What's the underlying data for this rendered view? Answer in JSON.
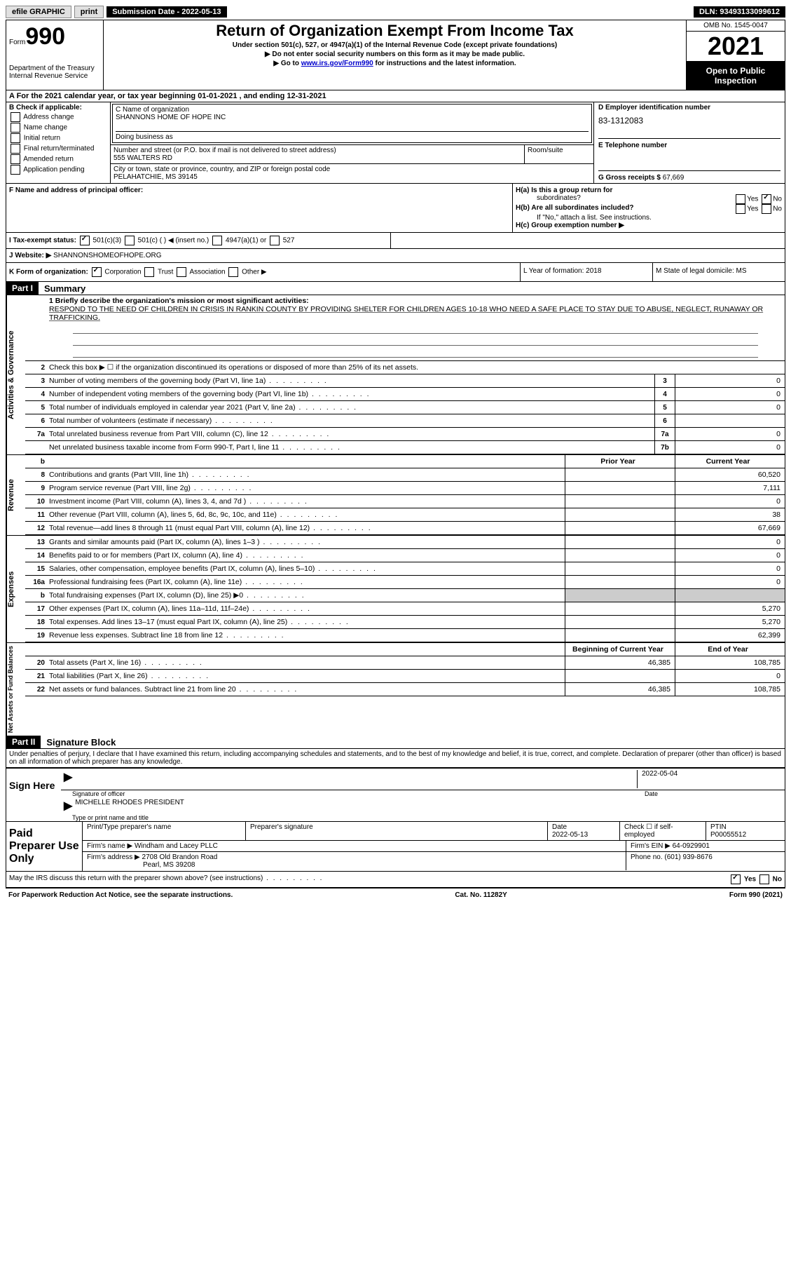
{
  "topbar": {
    "efile_label": "efile GRAPHIC",
    "print_btn": "print",
    "submission_label": "Submission Date - 2022-05-13",
    "dln_label": "DLN: 93493133099612"
  },
  "header": {
    "form_label": "Form",
    "form_number": "990",
    "dept": "Department of the Treasury",
    "irs": "Internal Revenue Service",
    "title": "Return of Organization Exempt From Income Tax",
    "sub1": "Under section 501(c), 527, or 4947(a)(1) of the Internal Revenue Code (except private foundations)",
    "sub2": "▶ Do not enter social security numbers on this form as it may be made public.",
    "sub3_prefix": "▶ Go to ",
    "sub3_link": "www.irs.gov/Form990",
    "sub3_suffix": " for instructions and the latest information.",
    "omb": "OMB No. 1545-0047",
    "year": "2021",
    "open_public": "Open to Public Inspection"
  },
  "rowA": {
    "text": "A  For the 2021 calendar year, or tax year beginning 01-01-2021    , and ending 12-31-2021"
  },
  "colB": {
    "header": "B Check if applicable:",
    "options": [
      "Address change",
      "Name change",
      "Initial return",
      "Final return/terminated",
      "Amended return",
      "Application pending"
    ]
  },
  "colC": {
    "name_label": "C Name of organization",
    "name": "SHANNONS HOME OF HOPE INC",
    "dba_label": "Doing business as",
    "addr_label": "Number and street (or P.O. box if mail is not delivered to street address)",
    "room_label": "Room/suite",
    "addr": "555 WALTERS RD",
    "city_label": "City or town, state or province, country, and ZIP or foreign postal code",
    "city": "PELAHATCHIE, MS  39145"
  },
  "colD": {
    "ein_label": "D Employer identification number",
    "ein": "83-1312083",
    "phone_label": "E Telephone number",
    "receipts_label": "G Gross receipts $",
    "receipts": "67,669"
  },
  "rowF": {
    "label": "F Name and address of principal officer:"
  },
  "rowH": {
    "ha_label": "H(a)  Is this a group return for",
    "ha_sub": "subordinates?",
    "hb_label": "H(b)  Are all subordinates included?",
    "hb_note": "If \"No,\" attach a list. See instructions.",
    "hc_label": "H(c)  Group exemption number ▶",
    "yes": "Yes",
    "no": "No"
  },
  "rowI": {
    "label": "I   Tax-exempt status:",
    "opt1": "501(c)(3)",
    "opt2": "501(c) (  ) ◀ (insert no.)",
    "opt3": "4947(a)(1) or",
    "opt4": "527"
  },
  "rowJ": {
    "label": "J   Website: ▶",
    "value": "SHANNONSHOMEOFHOPE.ORG"
  },
  "rowK": {
    "label": "K Form of organization:",
    "corp": "Corporation",
    "trust": "Trust",
    "assoc": "Association",
    "other": "Other ▶",
    "year_label": "L Year of formation: 2018",
    "state_label": "M State of legal domicile: MS"
  },
  "part1": {
    "header": "Part I",
    "title": "Summary",
    "side_gov": "Activities & Governance",
    "side_rev": "Revenue",
    "side_exp": "Expenses",
    "side_net": "Net Assets or Fund Balances",
    "line1_label": "1  Briefly describe the organization's mission or most significant activities:",
    "line1_text": "RESPOND TO THE NEED OF CHILDREN IN CRISIS IN RANKIN COUNTY BY PROVIDING SHELTER FOR CHILDREN AGES 10-18 WHO NEED A SAFE PLACE TO STAY DUE TO ABUSE, NEGLECT, RUNAWAY OR TRAFFICKING.",
    "line2": "Check this box ▶ ☐  if the organization discontinued its operations or disposed of more than 25% of its net assets.",
    "lines_gov": [
      {
        "n": "3",
        "t": "Number of voting members of the governing body (Part VI, line 1a)",
        "b": "3",
        "v": "0"
      },
      {
        "n": "4",
        "t": "Number of independent voting members of the governing body (Part VI, line 1b)",
        "b": "4",
        "v": "0"
      },
      {
        "n": "5",
        "t": "Total number of individuals employed in calendar year 2021 (Part V, line 2a)",
        "b": "5",
        "v": "0"
      },
      {
        "n": "6",
        "t": "Total number of volunteers (estimate if necessary)",
        "b": "6",
        "v": ""
      },
      {
        "n": "7a",
        "t": "Total unrelated business revenue from Part VIII, column (C), line 12",
        "b": "7a",
        "v": "0"
      },
      {
        "n": "",
        "t": "Net unrelated business taxable income from Form 990-T, Part I, line 11",
        "b": "7b",
        "v": "0"
      }
    ],
    "col_prior": "Prior Year",
    "col_current": "Current Year",
    "lines_rev": [
      {
        "n": "8",
        "t": "Contributions and grants (Part VIII, line 1h)",
        "p": "",
        "c": "60,520"
      },
      {
        "n": "9",
        "t": "Program service revenue (Part VIII, line 2g)",
        "p": "",
        "c": "7,111"
      },
      {
        "n": "10",
        "t": "Investment income (Part VIII, column (A), lines 3, 4, and 7d )",
        "p": "",
        "c": "0"
      },
      {
        "n": "11",
        "t": "Other revenue (Part VIII, column (A), lines 5, 6d, 8c, 9c, 10c, and 11e)",
        "p": "",
        "c": "38"
      },
      {
        "n": "12",
        "t": "Total revenue—add lines 8 through 11 (must equal Part VIII, column (A), line 12)",
        "p": "",
        "c": "67,669"
      }
    ],
    "lines_exp": [
      {
        "n": "13",
        "t": "Grants and similar amounts paid (Part IX, column (A), lines 1–3 )",
        "p": "",
        "c": "0"
      },
      {
        "n": "14",
        "t": "Benefits paid to or for members (Part IX, column (A), line 4)",
        "p": "",
        "c": "0"
      },
      {
        "n": "15",
        "t": "Salaries, other compensation, employee benefits (Part IX, column (A), lines 5–10)",
        "p": "",
        "c": "0"
      },
      {
        "n": "16a",
        "t": "Professional fundraising fees (Part IX, column (A), line 11e)",
        "p": "",
        "c": "0"
      },
      {
        "n": "b",
        "t": "Total fundraising expenses (Part IX, column (D), line 25) ▶0",
        "p": "shaded",
        "c": "shaded"
      },
      {
        "n": "17",
        "t": "Other expenses (Part IX, column (A), lines 11a–11d, 11f–24e)",
        "p": "",
        "c": "5,270"
      },
      {
        "n": "18",
        "t": "Total expenses. Add lines 13–17 (must equal Part IX, column (A), line 25)",
        "p": "",
        "c": "5,270"
      },
      {
        "n": "19",
        "t": "Revenue less expenses. Subtract line 18 from line 12",
        "p": "",
        "c": "62,399"
      }
    ],
    "col_begin": "Beginning of Current Year",
    "col_end": "End of Year",
    "lines_net": [
      {
        "n": "20",
        "t": "Total assets (Part X, line 16)",
        "p": "46,385",
        "c": "108,785"
      },
      {
        "n": "21",
        "t": "Total liabilities (Part X, line 26)",
        "p": "",
        "c": "0"
      },
      {
        "n": "22",
        "t": "Net assets or fund balances. Subtract line 21 from line 20",
        "p": "46,385",
        "c": "108,785"
      }
    ]
  },
  "part2": {
    "header": "Part II",
    "title": "Signature Block",
    "penalty": "Under penalties of perjury, I declare that I have examined this return, including accompanying schedules and statements, and to the best of my knowledge and belief, it is true, correct, and complete. Declaration of preparer (other than officer) is based on all information of which preparer has any knowledge.",
    "sign_here": "Sign Here",
    "sig_officer": "Signature of officer",
    "sig_date": "2022-05-04",
    "sig_name": "MICHELLE RHODES  PRESIDENT",
    "sig_name_label": "Type or print name and title",
    "paid_label": "Paid Preparer Use Only",
    "prep_name_label": "Print/Type preparer's name",
    "prep_sig_label": "Preparer's signature",
    "prep_date_label": "Date",
    "prep_date": "2022-05-13",
    "check_self": "Check ☐ if self-employed",
    "ptin_label": "PTIN",
    "ptin": "P00055512",
    "firm_name_label": "Firm's name    ▶",
    "firm_name": "Windham and Lacey PLLC",
    "firm_ein_label": "Firm's EIN ▶",
    "firm_ein": "64-0929901",
    "firm_addr_label": "Firm's address ▶",
    "firm_addr": "2708 Old Brandon Road",
    "firm_city": "Pearl, MS  39208",
    "firm_phone_label": "Phone no.",
    "firm_phone": "(601) 939-8676",
    "discuss": "May the IRS discuss this return with the preparer shown above? (see instructions)",
    "discuss_yes": "Yes",
    "discuss_no": "No"
  },
  "footer": {
    "paperwork": "For Paperwork Reduction Act Notice, see the separate instructions.",
    "cat": "Cat. No. 11282Y",
    "form": "Form 990 (2021)"
  }
}
